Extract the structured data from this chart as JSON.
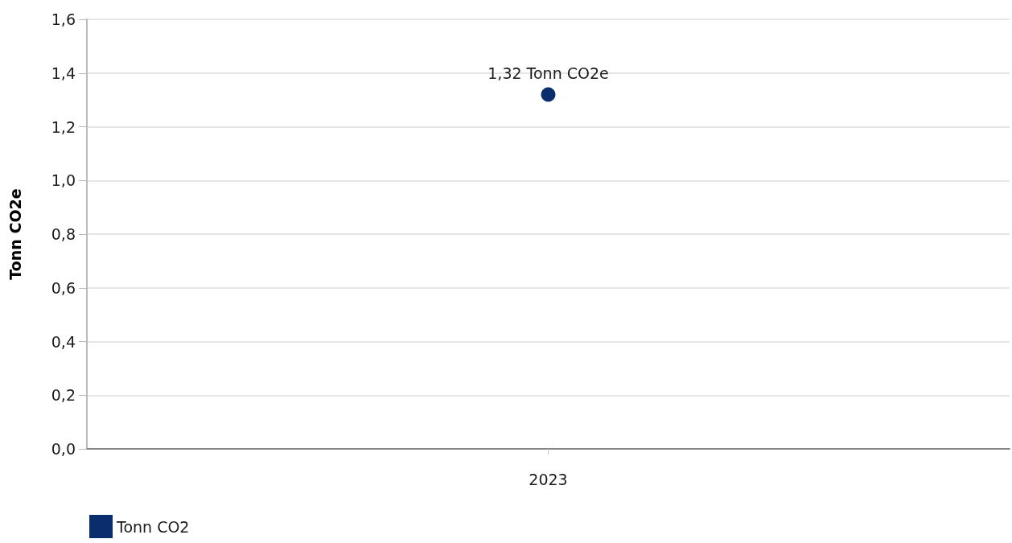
{
  "chart_data": {
    "type": "scatter",
    "categories": [
      "2023"
    ],
    "ylabel": "Tonn CO2e",
    "series": [
      {
        "name": "Tonn CO2",
        "color": "#0a2d6e",
        "values": [
          1.32
        ],
        "value_labels": [
          "1,32 Tonn CO2e"
        ]
      }
    ],
    "ylim": [
      0,
      1.6
    ],
    "yticks": [
      {
        "value": 0,
        "label": "0,0"
      },
      {
        "value": 0.2,
        "label": "0,2"
      },
      {
        "value": 0.4,
        "label": "0,4"
      },
      {
        "value": 0.6,
        "label": "0,6"
      },
      {
        "value": 0.8,
        "label": "0,8"
      },
      {
        "value": 1,
        "label": "1,0"
      },
      {
        "value": 1.2,
        "label": "1,2"
      },
      {
        "value": 1.4,
        "label": "1,4"
      },
      {
        "value": 1.6,
        "label": "1,6"
      }
    ],
    "grid": "y",
    "legend": "bottom left",
    "marker": "circle"
  }
}
